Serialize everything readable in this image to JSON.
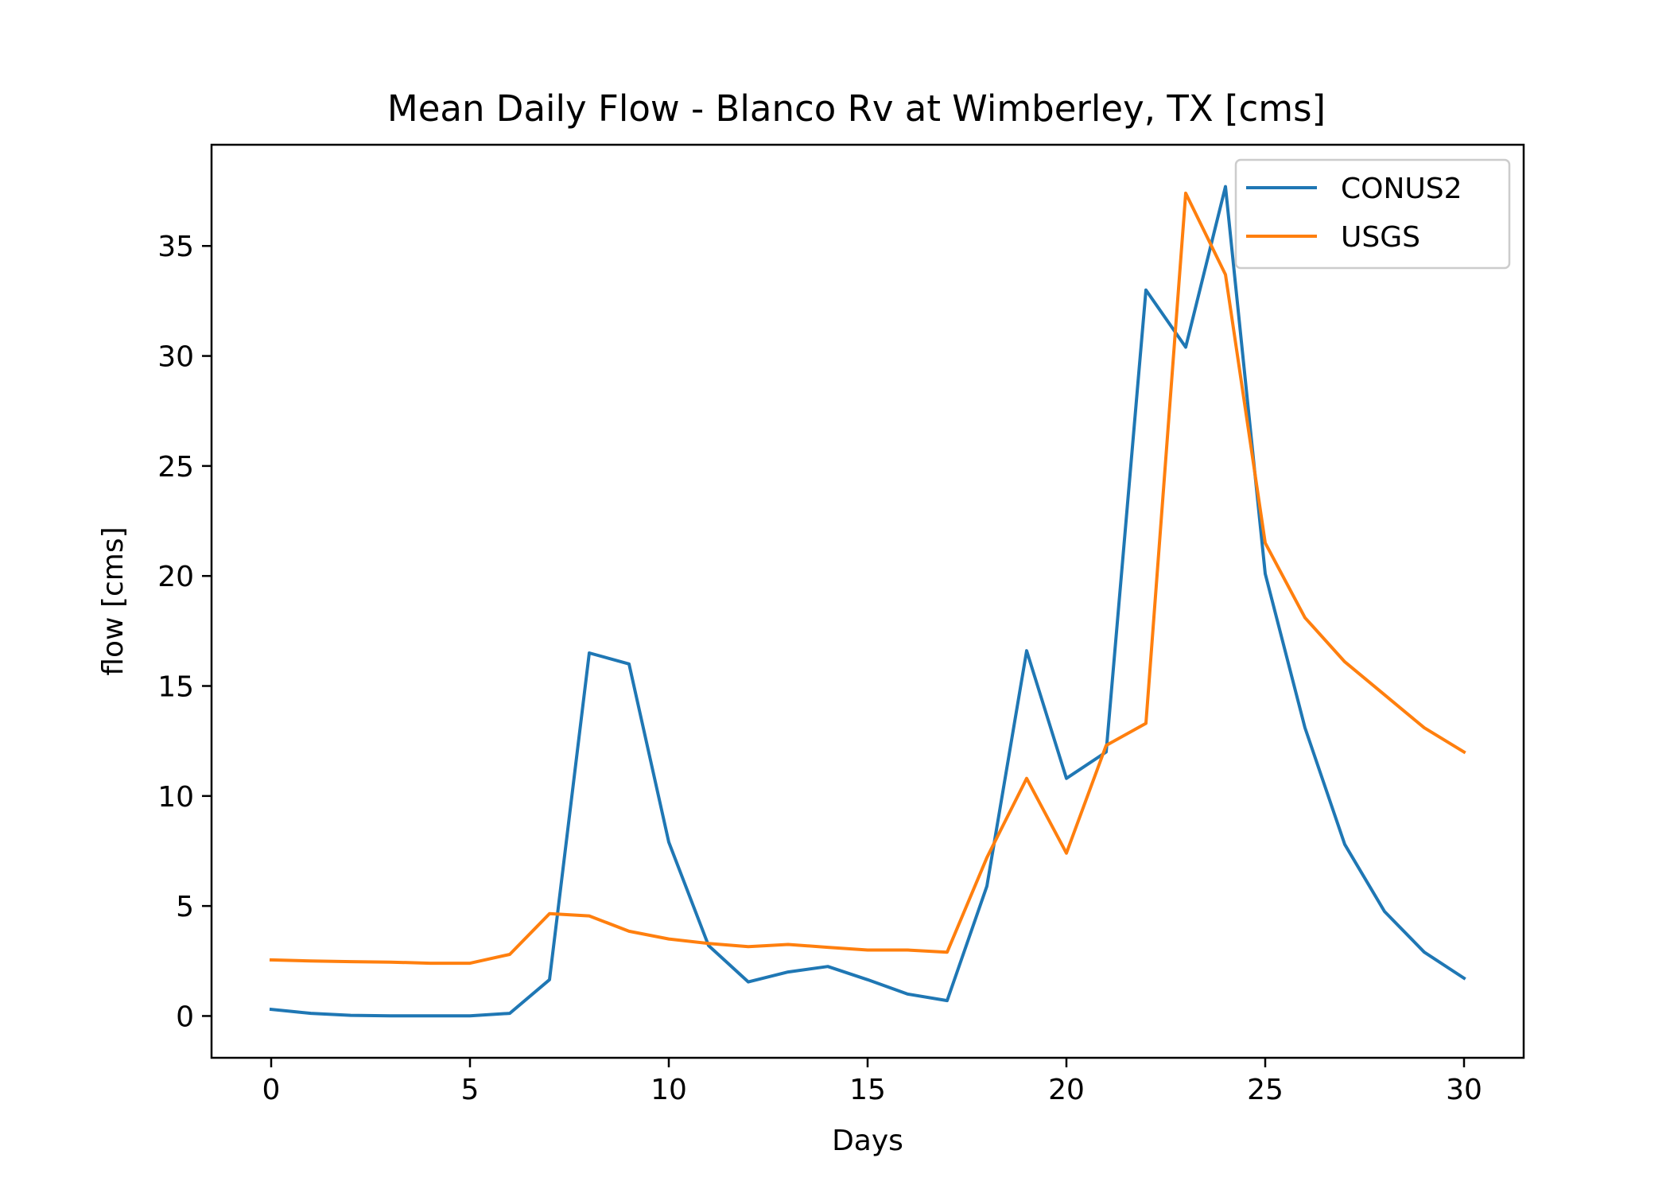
{
  "chart_data": {
    "type": "line",
    "title": "Mean Daily Flow - Blanco Rv at Wimberley, TX [cms]",
    "xlabel": "Days",
    "ylabel": "flow [cms]",
    "xlim": [
      -1.5,
      31.5
    ],
    "ylim": [
      -1.9,
      39.6
    ],
    "xticks": [
      0,
      5,
      10,
      15,
      20,
      25,
      30
    ],
    "yticks": [
      0,
      5,
      10,
      15,
      20,
      25,
      30,
      35
    ],
    "grid": false,
    "legend_position": "top-right",
    "x": [
      0,
      1,
      2,
      3,
      4,
      5,
      6,
      7,
      8,
      9,
      10,
      11,
      12,
      13,
      14,
      15,
      16,
      17,
      18,
      19,
      20,
      21,
      22,
      23,
      24,
      25,
      26,
      27,
      28,
      29,
      30
    ],
    "series": [
      {
        "name": "CONUS2",
        "color": "#1f77b4",
        "values": [
          0.3,
          0.12,
          0.03,
          0.01,
          0.01,
          0.01,
          0.12,
          1.65,
          16.5,
          16.0,
          7.9,
          3.2,
          1.55,
          2.0,
          2.25,
          1.65,
          1.0,
          0.7,
          5.9,
          16.6,
          10.8,
          12.0,
          33.0,
          30.4,
          37.7,
          20.1,
          13.1,
          7.8,
          4.75,
          2.9,
          1.72
        ]
      },
      {
        "name": "USGS",
        "color": "#ff7f0e",
        "values": [
          2.55,
          2.5,
          2.47,
          2.45,
          2.4,
          2.4,
          2.8,
          4.65,
          4.55,
          3.85,
          3.5,
          3.3,
          3.15,
          3.25,
          3.12,
          3.0,
          3.0,
          2.9,
          7.2,
          10.8,
          7.4,
          12.3,
          13.3,
          37.4,
          33.7,
          21.5,
          18.1,
          16.1,
          14.6,
          13.1,
          12.0
        ]
      }
    ]
  }
}
